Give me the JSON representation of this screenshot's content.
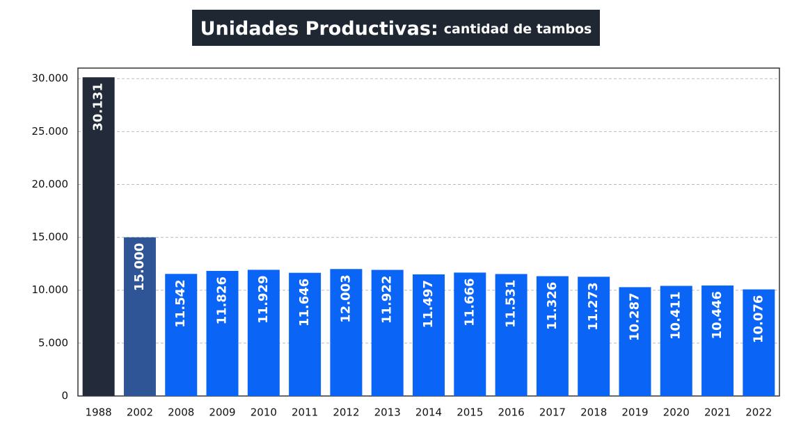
{
  "chart_data": {
    "type": "bar",
    "title": "Unidades Productivas:",
    "subtitle": "cantidad de tambos",
    "categories": [
      "1988",
      "2002",
      "2008",
      "2009",
      "2010",
      "2011",
      "2012",
      "2013",
      "2014",
      "2015",
      "2016",
      "2017",
      "2018",
      "2019",
      "2020",
      "2021",
      "2022"
    ],
    "values": [
      30131,
      15000,
      11542,
      11826,
      11929,
      11646,
      12003,
      11922,
      11497,
      11666,
      11531,
      11326,
      11273,
      10287,
      10411,
      10446,
      10076
    ],
    "value_labels": [
      "30.131",
      "15.000",
      "11.542",
      "11.826",
      "11.929",
      "11.646",
      "12.003",
      "11.922",
      "11.497",
      "11.666",
      "11.531",
      "11.326",
      "11.273",
      "10.287",
      "10.411",
      "10.446",
      "10.076"
    ],
    "colors": [
      "#232b3a",
      "#2f5597",
      "#0a64f5",
      "#0a64f5",
      "#0a64f5",
      "#0a64f5",
      "#0a64f5",
      "#0a64f5",
      "#0a64f5",
      "#0a64f5",
      "#0a64f5",
      "#0a64f5",
      "#0a64f5",
      "#0a64f5",
      "#0a64f5",
      "#0a64f5",
      "#0a64f5"
    ],
    "ylim": [
      0,
      31000
    ],
    "yticks": [
      0,
      {
        "value": 5000,
        "label": "5.000"
      },
      {
        "value": 10000,
        "label": "10.000"
      },
      {
        "value": 15000,
        "label": "15.000"
      },
      {
        "value": 20000,
        "label": "20.000"
      },
      {
        "value": 25000,
        "label": "25.000"
      },
      {
        "value": 30000,
        "label": "30.000"
      }
    ],
    "grid": true
  }
}
